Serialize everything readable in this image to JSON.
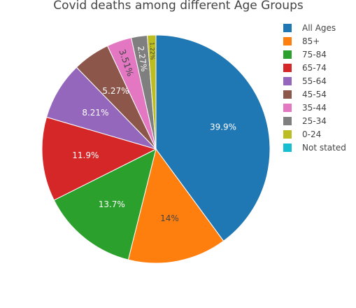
{
  "chart_data": {
    "type": "pie",
    "title": "Covid deaths among different Age Groups",
    "categories": [
      "All Ages",
      "85+",
      "75-84",
      "65-74",
      "55-64",
      "45-54",
      "35-44",
      "25-34",
      "0-24",
      "Not stated"
    ],
    "values": [
      39.9,
      14,
      13.7,
      11.9,
      8.21,
      5.27,
      3.51,
      2.27,
      1.22,
      0
    ],
    "labels": [
      "39.9%",
      "14%",
      "13.7%",
      "11.9%",
      "8.21%",
      "5.27%",
      "3.51%",
      "2.27%",
      "1.22%",
      ""
    ],
    "colors": [
      "#1f77b4",
      "#ff7f0e",
      "#2ca02c",
      "#d62728",
      "#9467bd",
      "#8c564b",
      "#e377c2",
      "#7f7f7f",
      "#bcbd22",
      "#17becf"
    ],
    "label_colors": [
      "#ffffff",
      "#444444",
      "#ffffff",
      "#ffffff",
      "#ffffff",
      "#ffffff",
      "#444444",
      "#ffffff",
      "#444444",
      "#444444"
    ],
    "legend_position": "top-right",
    "start_angle_deg": 0,
    "direction": "clockwise"
  }
}
